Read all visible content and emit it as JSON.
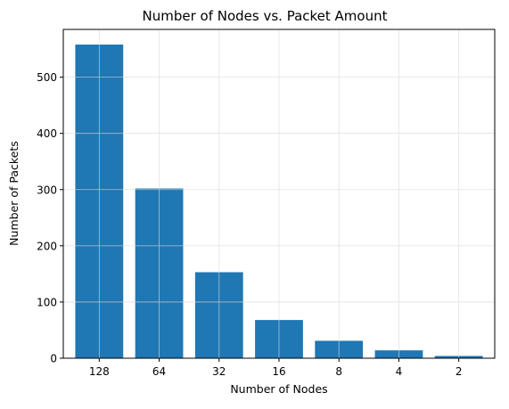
{
  "chart_data": {
    "type": "bar",
    "title": "Number of Nodes vs. Packet Amount",
    "xlabel": "Number of Nodes",
    "ylabel": "Number of Packets",
    "categories": [
      "128",
      "64",
      "32",
      "16",
      "8",
      "4",
      "2"
    ],
    "values": [
      558,
      302,
      153,
      68,
      31,
      14,
      4
    ],
    "ylim": [
      0,
      585
    ],
    "yticks": [
      0,
      100,
      200,
      300,
      400,
      500
    ],
    "grid": true,
    "legend": "none",
    "bar_color": "#1f77b4",
    "grid_color": "#d9d9d9"
  }
}
